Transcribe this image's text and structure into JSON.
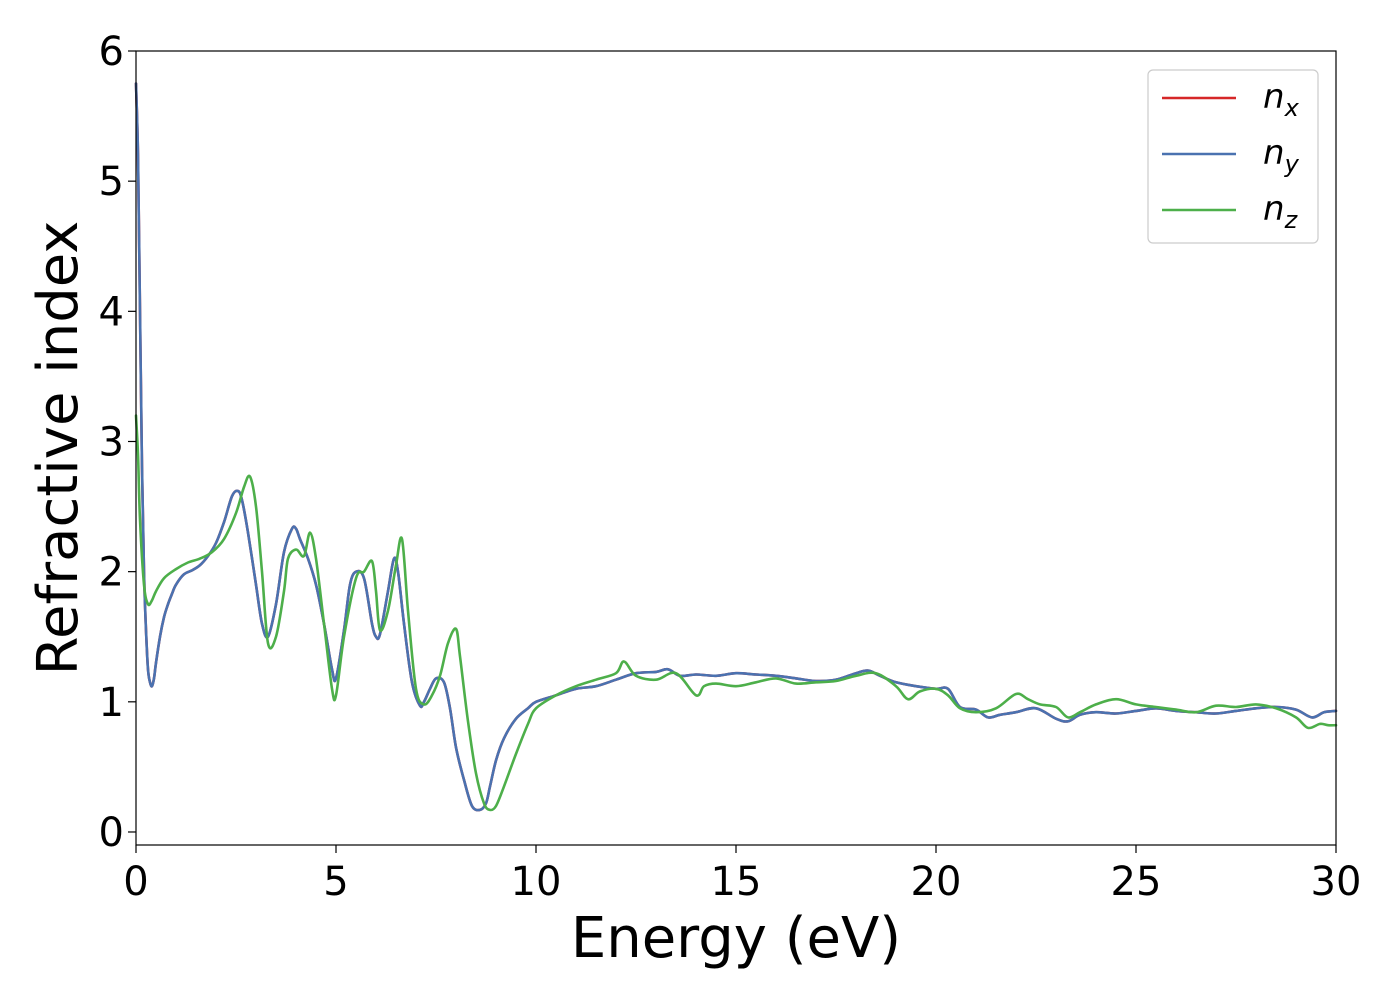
{
  "chart_data": {
    "type": "line",
    "xlabel": "Energy (eV)",
    "ylabel": "Refractive index",
    "xlim": [
      0,
      30
    ],
    "ylim": [
      -0.1,
      6.0
    ],
    "xticks": [
      0,
      5,
      10,
      15,
      20,
      25,
      30
    ],
    "yticks": [
      0,
      1,
      2,
      3,
      4,
      5,
      6
    ],
    "grid": false,
    "legend_position": "top-right",
    "series": [
      {
        "name": "n_x",
        "label_base": "n",
        "label_sub": "x",
        "color": "#d62728",
        "x": [
          0,
          0.05,
          0.1,
          0.15,
          0.2,
          0.25,
          0.3,
          0.35,
          0.4,
          0.45,
          0.5,
          0.6,
          0.7,
          0.8,
          0.9,
          1.0,
          1.2,
          1.4,
          1.6,
          1.8,
          2.0,
          2.2,
          2.4,
          2.55,
          2.65,
          2.8,
          3.0,
          3.15,
          3.3,
          3.5,
          3.7,
          3.9,
          4.0,
          4.1,
          4.3,
          4.5,
          4.7,
          4.9,
          5.0,
          5.2,
          5.35,
          5.5,
          5.7,
          5.9,
          6.0,
          6.1,
          6.3,
          6.45,
          6.55,
          6.7,
          6.9,
          7.1,
          7.2,
          7.35,
          7.5,
          7.7,
          7.85,
          8.0,
          8.2,
          8.4,
          8.6,
          8.75,
          8.85,
          9.0,
          9.2,
          9.5,
          9.8,
          10.0,
          10.5,
          11.0,
          11.5,
          12.0,
          12.5,
          13.0,
          13.3,
          13.6,
          14.0,
          14.5,
          15.0,
          15.5,
          16.0,
          16.5,
          17.0,
          17.5,
          18.0,
          18.3,
          18.6,
          19.0,
          19.5,
          20.0,
          20.3,
          20.6,
          21.0,
          21.3,
          21.6,
          22.0,
          22.5,
          23.0,
          23.3,
          23.6,
          24.0,
          24.5,
          25.0,
          25.5,
          26.0,
          26.5,
          27.0,
          27.5,
          28.0,
          28.5,
          29.0,
          29.4,
          29.7,
          30.0
        ],
        "y": [
          5.75,
          5.2,
          4.0,
          2.8,
          2.0,
          1.55,
          1.25,
          1.15,
          1.12,
          1.18,
          1.3,
          1.5,
          1.65,
          1.75,
          1.83,
          1.9,
          1.98,
          2.01,
          2.05,
          2.12,
          2.22,
          2.38,
          2.58,
          2.62,
          2.55,
          2.3,
          1.9,
          1.6,
          1.5,
          1.75,
          2.15,
          2.33,
          2.33,
          2.25,
          2.1,
          1.9,
          1.6,
          1.25,
          1.18,
          1.55,
          1.9,
          2.0,
          1.95,
          1.6,
          1.5,
          1.52,
          1.85,
          2.1,
          2.0,
          1.6,
          1.15,
          0.97,
          1.0,
          1.1,
          1.18,
          1.15,
          0.95,
          0.65,
          0.4,
          0.2,
          0.17,
          0.22,
          0.35,
          0.55,
          0.72,
          0.87,
          0.95,
          1.0,
          1.05,
          1.1,
          1.12,
          1.17,
          1.22,
          1.23,
          1.25,
          1.2,
          1.21,
          1.2,
          1.22,
          1.21,
          1.2,
          1.18,
          1.16,
          1.17,
          1.22,
          1.24,
          1.2,
          1.15,
          1.12,
          1.1,
          1.1,
          0.96,
          0.94,
          0.88,
          0.9,
          0.92,
          0.95,
          0.87,
          0.85,
          0.9,
          0.92,
          0.91,
          0.93,
          0.95,
          0.93,
          0.92,
          0.91,
          0.93,
          0.95,
          0.96,
          0.94,
          0.88,
          0.92,
          0.93
        ]
      },
      {
        "name": "n_y",
        "label_base": "n",
        "label_sub": "y",
        "color": "#4a72b0",
        "x": [
          0,
          0.05,
          0.1,
          0.15,
          0.2,
          0.25,
          0.3,
          0.35,
          0.4,
          0.45,
          0.5,
          0.6,
          0.7,
          0.8,
          0.9,
          1.0,
          1.2,
          1.4,
          1.6,
          1.8,
          2.0,
          2.2,
          2.4,
          2.55,
          2.65,
          2.8,
          3.0,
          3.15,
          3.3,
          3.5,
          3.7,
          3.9,
          4.0,
          4.1,
          4.3,
          4.5,
          4.7,
          4.9,
          5.0,
          5.2,
          5.35,
          5.5,
          5.7,
          5.9,
          6.0,
          6.1,
          6.3,
          6.45,
          6.55,
          6.7,
          6.9,
          7.1,
          7.2,
          7.35,
          7.5,
          7.7,
          7.85,
          8.0,
          8.2,
          8.4,
          8.6,
          8.75,
          8.85,
          9.0,
          9.2,
          9.5,
          9.8,
          10.0,
          10.5,
          11.0,
          11.5,
          12.0,
          12.5,
          13.0,
          13.3,
          13.6,
          14.0,
          14.5,
          15.0,
          15.5,
          16.0,
          16.5,
          17.0,
          17.5,
          18.0,
          18.3,
          18.6,
          19.0,
          19.5,
          20.0,
          20.3,
          20.6,
          21.0,
          21.3,
          21.6,
          22.0,
          22.5,
          23.0,
          23.3,
          23.6,
          24.0,
          24.5,
          25.0,
          25.5,
          26.0,
          26.5,
          27.0,
          27.5,
          28.0,
          28.5,
          29.0,
          29.4,
          29.7,
          30.0
        ],
        "y": [
          5.75,
          5.2,
          4.0,
          2.8,
          2.0,
          1.55,
          1.25,
          1.15,
          1.12,
          1.18,
          1.3,
          1.5,
          1.65,
          1.75,
          1.83,
          1.9,
          1.98,
          2.01,
          2.05,
          2.12,
          2.22,
          2.38,
          2.58,
          2.62,
          2.55,
          2.3,
          1.9,
          1.6,
          1.5,
          1.75,
          2.15,
          2.33,
          2.33,
          2.25,
          2.1,
          1.9,
          1.6,
          1.25,
          1.18,
          1.55,
          1.9,
          2.0,
          1.95,
          1.6,
          1.5,
          1.52,
          1.85,
          2.1,
          2.0,
          1.6,
          1.15,
          0.97,
          1.0,
          1.1,
          1.18,
          1.15,
          0.95,
          0.65,
          0.4,
          0.2,
          0.17,
          0.22,
          0.35,
          0.55,
          0.72,
          0.87,
          0.95,
          1.0,
          1.05,
          1.1,
          1.12,
          1.17,
          1.22,
          1.23,
          1.25,
          1.2,
          1.21,
          1.2,
          1.22,
          1.21,
          1.2,
          1.18,
          1.16,
          1.17,
          1.22,
          1.24,
          1.2,
          1.15,
          1.12,
          1.1,
          1.1,
          0.96,
          0.94,
          0.88,
          0.9,
          0.92,
          0.95,
          0.87,
          0.85,
          0.9,
          0.92,
          0.91,
          0.93,
          0.95,
          0.93,
          0.92,
          0.91,
          0.93,
          0.95,
          0.96,
          0.94,
          0.88,
          0.92,
          0.93
        ]
      },
      {
        "name": "n_z",
        "label_base": "n",
        "label_sub": "z",
        "color": "#4daf4a",
        "x": [
          0,
          0.05,
          0.1,
          0.2,
          0.3,
          0.4,
          0.5,
          0.7,
          1.0,
          1.3,
          1.6,
          1.9,
          2.2,
          2.5,
          2.7,
          2.85,
          3.0,
          3.15,
          3.3,
          3.5,
          3.7,
          3.8,
          4.0,
          4.2,
          4.35,
          4.5,
          4.7,
          4.9,
          5.0,
          5.2,
          5.5,
          5.7,
          5.9,
          6.0,
          6.1,
          6.3,
          6.5,
          6.65,
          6.8,
          7.0,
          7.2,
          7.4,
          7.6,
          7.8,
          8.0,
          8.1,
          8.3,
          8.5,
          8.7,
          8.85,
          9.0,
          9.2,
          9.5,
          9.8,
          10.0,
          10.5,
          11.0,
          11.5,
          12.0,
          12.2,
          12.5,
          13.0,
          13.5,
          14.0,
          14.2,
          14.5,
          15.0,
          15.5,
          16.0,
          16.5,
          17.0,
          17.5,
          18.0,
          18.5,
          19.0,
          19.3,
          19.6,
          20.0,
          20.3,
          20.6,
          21.0,
          21.5,
          22.0,
          22.3,
          22.6,
          23.0,
          23.3,
          23.6,
          24.0,
          24.5,
          25.0,
          25.5,
          26.0,
          26.5,
          27.0,
          27.5,
          28.0,
          28.5,
          29.0,
          29.3,
          29.6,
          29.8,
          30.0
        ],
        "y": [
          3.2,
          2.9,
          2.4,
          1.9,
          1.75,
          1.78,
          1.85,
          1.95,
          2.02,
          2.07,
          2.1,
          2.15,
          2.25,
          2.45,
          2.65,
          2.73,
          2.5,
          2.0,
          1.45,
          1.5,
          1.85,
          2.1,
          2.17,
          2.12,
          2.3,
          2.1,
          1.6,
          1.1,
          1.05,
          1.5,
          1.95,
          2.0,
          2.08,
          1.85,
          1.55,
          1.7,
          2.05,
          2.25,
          1.7,
          1.1,
          0.98,
          1.05,
          1.2,
          1.45,
          1.56,
          1.35,
          0.85,
          0.45,
          0.22,
          0.17,
          0.2,
          0.35,
          0.6,
          0.83,
          0.95,
          1.05,
          1.12,
          1.17,
          1.22,
          1.31,
          1.2,
          1.17,
          1.22,
          1.05,
          1.12,
          1.14,
          1.12,
          1.15,
          1.18,
          1.14,
          1.15,
          1.16,
          1.2,
          1.22,
          1.12,
          1.02,
          1.08,
          1.1,
          1.05,
          0.95,
          0.92,
          0.95,
          1.06,
          1.02,
          0.98,
          0.96,
          0.88,
          0.92,
          0.98,
          1.02,
          0.98,
          0.96,
          0.94,
          0.92,
          0.97,
          0.96,
          0.98,
          0.95,
          0.88,
          0.8,
          0.83,
          0.82,
          0.82
        ]
      }
    ]
  }
}
